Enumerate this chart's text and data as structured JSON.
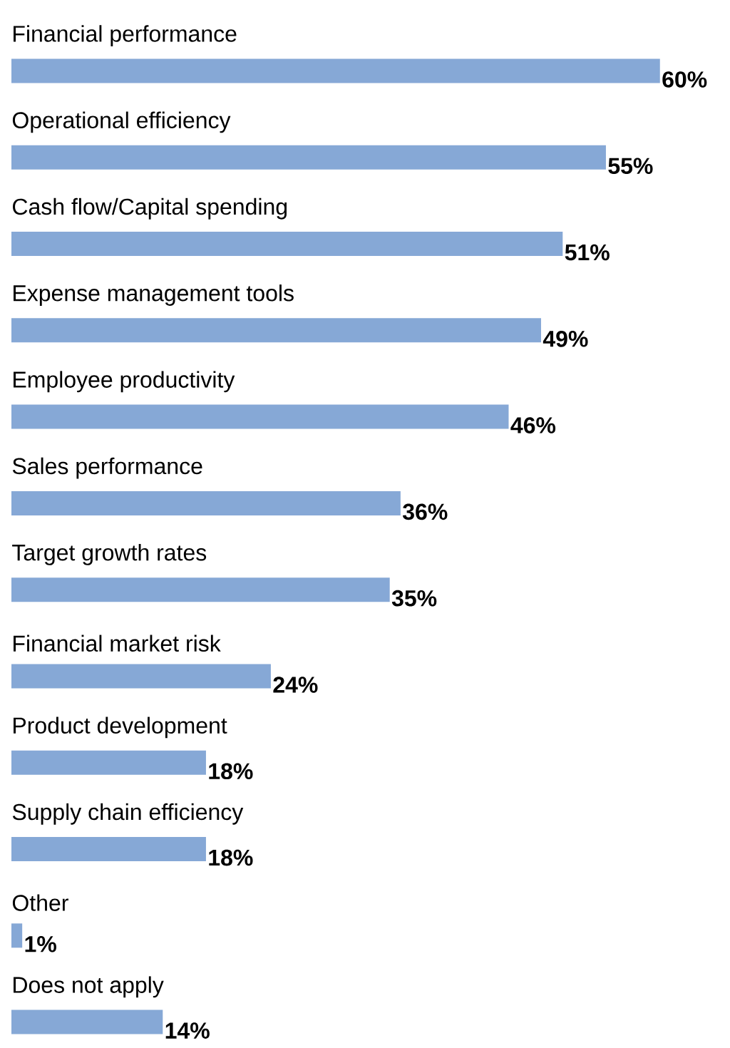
{
  "chart_data": {
    "type": "bar",
    "orientation": "horizontal",
    "categories": [
      "Financial performance",
      "Operational efficiency",
      "Cash flow/Capital spending",
      "Expense management tools",
      "Employee productivity",
      "Sales performance",
      "Target growth rates",
      "Financial market risk",
      "Product development",
      "Supply chain efficiency",
      "Other",
      "Does not apply"
    ],
    "values": [
      60,
      55,
      51,
      49,
      46,
      36,
      35,
      24,
      18,
      18,
      1,
      14
    ],
    "value_labels": [
      "60%",
      "55%",
      "51%",
      "49%",
      "46%",
      "36%",
      "35%",
      "24%",
      "18%",
      "18%",
      "1%",
      "14%"
    ],
    "color": "#86a8d6"
  }
}
